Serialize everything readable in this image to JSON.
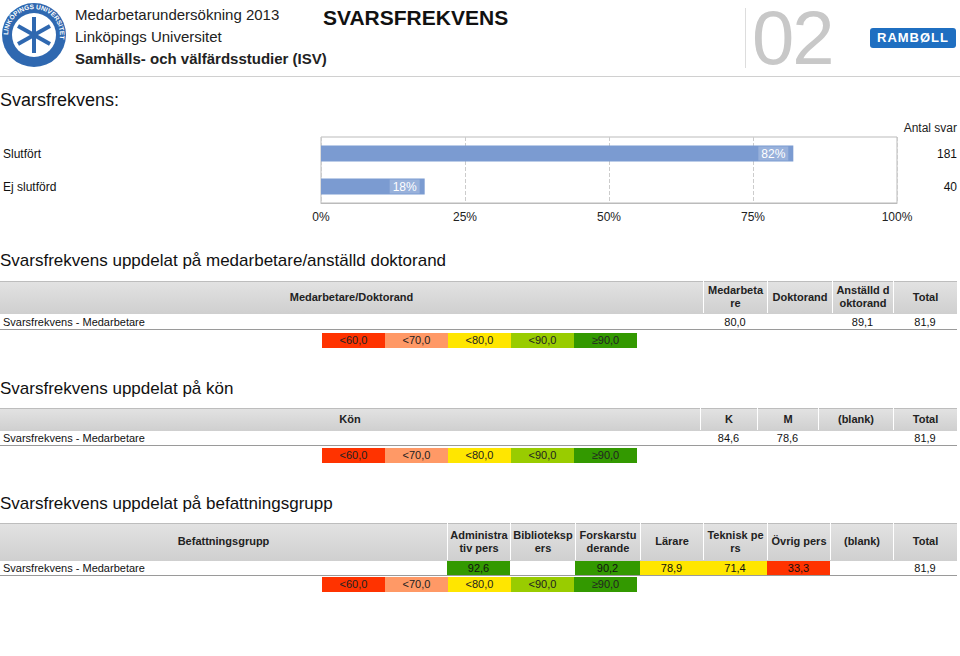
{
  "header": {
    "logo_text": "LINKÖPINGS UNIVERSITET",
    "title": "Medarbetarundersökning 2013",
    "university": "Linköpings Universitet",
    "department": "Samhälls- och välfärdsstudier (ISV)",
    "section": "SVARSFREKVENS",
    "page_number": "02",
    "brand": "RAMBØLL"
  },
  "heading": "Svarsfrekvens:",
  "chart_data": {
    "type": "bar",
    "orientation": "horizontal",
    "categories": [
      "Slutfört",
      "Ej slutförd"
    ],
    "values": [
      82,
      18
    ],
    "value_labels": [
      "82%",
      "18%"
    ],
    "data_labels": true,
    "color": "#7b9bd1",
    "xlim": [
      0,
      100
    ],
    "xticks": [
      {
        "value": 0,
        "label": "0%"
      },
      {
        "value": 25,
        "label": "25%"
      },
      {
        "value": 50,
        "label": "50%"
      },
      {
        "value": 75,
        "label": "75%"
      },
      {
        "value": 100,
        "label": "100%"
      }
    ],
    "grid": true,
    "counts_title": "Antal svar",
    "counts": [
      181,
      40
    ]
  },
  "tables": [
    {
      "title": "Svarsfrekvens uppdelat på medarbetare/anställd doktorand",
      "header": [
        "Medarbetare/Doktorand",
        "Medarbetare",
        "Doktorand",
        "Anställd doktorand",
        "Total"
      ],
      "rows": [
        {
          "label": "Svarsfrekvens - Medarbetare",
          "cells": [
            {
              "text": "80,0",
              "color": null
            },
            {
              "text": null,
              "color": null
            },
            {
              "text": "89,1",
              "color": null
            },
            {
              "text": "81,9",
              "color": null
            }
          ]
        }
      ],
      "legend": [
        {
          "label": "<60,0",
          "color": "#ff3300"
        },
        {
          "label": "<70,0",
          "color": "#ff9966"
        },
        {
          "label": "<80,0",
          "color": "#ffe600"
        },
        {
          "label": "<90,0",
          "color": "#99cc00"
        },
        {
          "label": "≥90,0",
          "color": "#339900"
        }
      ]
    },
    {
      "title": "Svarsfrekvens uppdelat på kön",
      "header": [
        "Kön",
        "K",
        "M",
        "(blank)",
        "Total"
      ],
      "rows": [
        {
          "label": "Svarsfrekvens - Medarbetare",
          "cells": [
            {
              "text": "84,6",
              "color": null
            },
            {
              "text": "78,6",
              "color": null
            },
            {
              "text": null,
              "color": null
            },
            {
              "text": "81,9",
              "color": null
            }
          ]
        }
      ],
      "legend": [
        {
          "label": "<60,0",
          "color": "#ff3300"
        },
        {
          "label": "<70,0",
          "color": "#ff9966"
        },
        {
          "label": "<80,0",
          "color": "#ffe600"
        },
        {
          "label": "<90,0",
          "color": "#99cc00"
        },
        {
          "label": "≥90,0",
          "color": "#339900"
        }
      ]
    },
    {
      "title": "Svarsfrekvens uppdelat på befattningsgrupp",
      "header": [
        "Befattningsgrupp",
        "Administrativ pers",
        "Bibliotekspers",
        "Forskarstuderande",
        "Lärare",
        "Teknisk pers",
        "Övrig pers",
        "(blank)",
        "Total"
      ],
      "rows": [
        {
          "label": "Svarsfrekvens - Medarbetare",
          "cells": [
            {
              "text": "92,6",
              "color": "#339900"
            },
            {
              "text": null,
              "color": null
            },
            {
              "text": "90,2",
              "color": "#339900"
            },
            {
              "text": "78,9",
              "color": "#ffe600"
            },
            {
              "text": "71,4",
              "color": "#ffe600"
            },
            {
              "text": "33,3",
              "color": "#ff3300"
            },
            {
              "text": null,
              "color": null
            },
            {
              "text": "81,9",
              "color": null
            }
          ]
        }
      ],
      "legend": [
        {
          "label": "<60,0",
          "color": "#ff3300"
        },
        {
          "label": "<70,0",
          "color": "#ff9966"
        },
        {
          "label": "<80,0",
          "color": "#ffe600"
        },
        {
          "label": "<90,0",
          "color": "#99cc00"
        },
        {
          "label": "≥90,0",
          "color": "#339900"
        }
      ]
    }
  ]
}
